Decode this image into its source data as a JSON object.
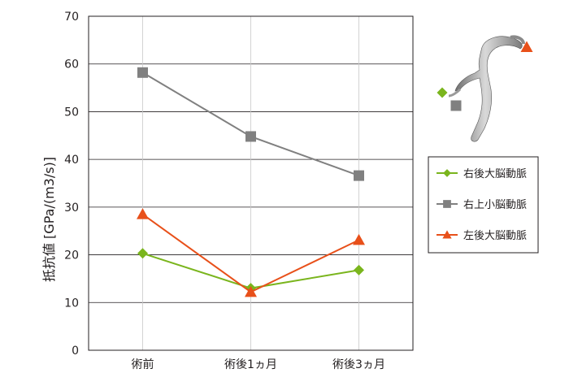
{
  "chart_data": {
    "type": "line",
    "categories": [
      "術前",
      "術後1ヵ月",
      "術後3ヵ月"
    ],
    "ylabel": "抵抗値 [GPa/(m3/s)]",
    "ylim": [
      0,
      70
    ],
    "yticks": [
      0,
      10,
      20,
      30,
      40,
      50,
      60,
      70
    ],
    "grid": true,
    "legend_position": "right",
    "series": [
      {
        "name": "右後大脳動脈",
        "values": [
          20.3,
          13.0,
          16.8
        ],
        "color": "#7ab51d",
        "marker": "diamond"
      },
      {
        "name": "右上小脳動脈",
        "values": [
          58.2,
          44.8,
          36.6
        ],
        "color": "#808080",
        "marker": "square"
      },
      {
        "name": "左後大脳動脈",
        "values": [
          28.5,
          12.2,
          23.1
        ],
        "color": "#e8501a",
        "marker": "triangle"
      }
    ]
  },
  "inset": {
    "icon": "vessel-3d-model-icon",
    "markers": [
      "diamond",
      "square",
      "triangle"
    ]
  }
}
